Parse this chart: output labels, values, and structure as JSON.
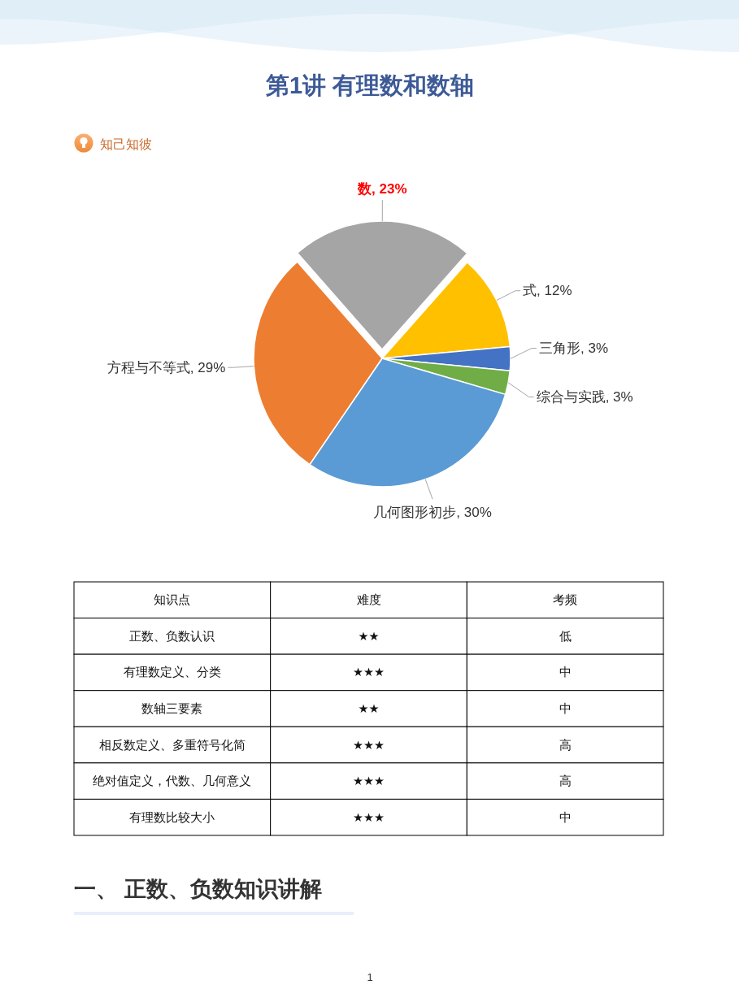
{
  "chart_data": [
    {
      "type": "pie",
      "title": "第1讲 有理数和数轴",
      "subtitle": "知己知彼",
      "categories": [
        "数",
        "式",
        "三角形",
        "综合与实践",
        "几何图形初步",
        "方程与不等式"
      ],
      "values": [
        23,
        12,
        3,
        3,
        30,
        29
      ],
      "colors": [
        "#a5a5a5",
        "#ffc000",
        "#4472c4",
        "#70ad47",
        "#5b9bd5",
        "#ed7d31"
      ],
      "value_labels": [
        "23%",
        "12%",
        "3%",
        "3%",
        "30%",
        "29%"
      ]
    },
    {
      "type": "other",
      "categories": [
        "知识点",
        "难度",
        "考频"
      ],
      "cell_labels": [
        [
          "正数、负数认识",
          "★★",
          "低"
        ],
        [
          "有理数定义、分类",
          "★★★",
          "中"
        ],
        [
          "数轴三要素",
          "★★",
          "中"
        ],
        [
          "相反数定义、多重符号化简",
          "★★★",
          "高"
        ],
        [
          "绝对值定义，代数、几何意义",
          "★★★",
          "高"
        ],
        [
          "有理数比较大小",
          "★★★",
          "中"
        ]
      ],
      "annotations": [
        "一、 正数、负数知识讲解",
        "1"
      ]
    }
  ]
}
